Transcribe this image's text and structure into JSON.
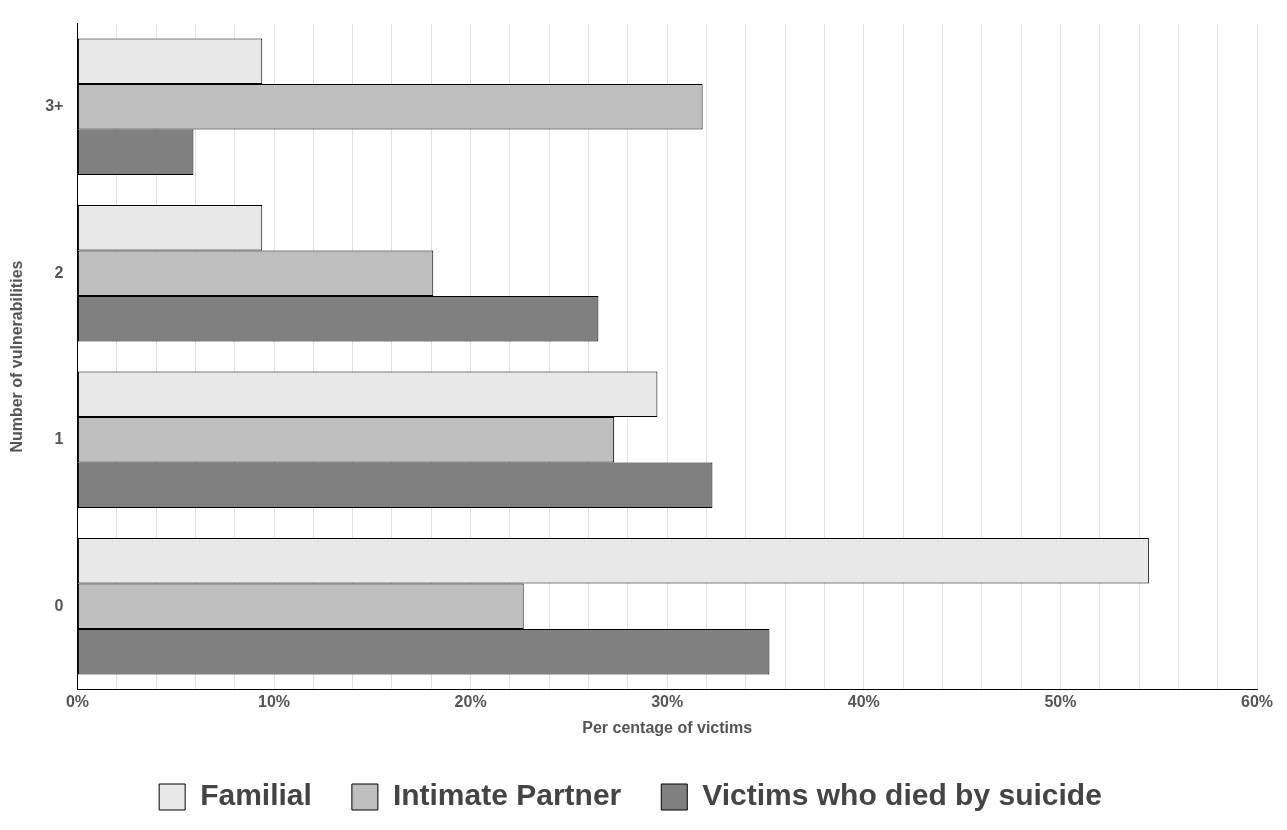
{
  "chart_data": {
    "type": "bar",
    "orientation": "horizontal",
    "xlabel": "Per centage of victims",
    "ylabel": "Number of vulnerabilities",
    "categories": [
      "3+",
      "2",
      "1",
      "0"
    ],
    "series": [
      {
        "name": "Familial",
        "color": "#e8e8e8",
        "values": [
          9.4,
          9.4,
          29.5,
          54.5
        ]
      },
      {
        "name": "Intimate Partner",
        "color": "#bfbfbf",
        "values": [
          31.8,
          18.1,
          27.3,
          22.7
        ]
      },
      {
        "name": "Victims who died by suicide",
        "color": "#808080",
        "values": [
          5.9,
          26.5,
          32.3,
          35.2
        ]
      }
    ],
    "xlim": [
      0,
      60
    ],
    "xticks": [
      {
        "value": 0,
        "label": "0%"
      },
      {
        "value": 2,
        "label": null
      },
      {
        "value": 4,
        "label": null
      },
      {
        "value": 6,
        "label": null
      },
      {
        "value": 8,
        "label": null
      },
      {
        "value": 10,
        "label": "10%"
      },
      {
        "value": 12,
        "label": null
      },
      {
        "value": 14,
        "label": null
      },
      {
        "value": 16,
        "label": null
      },
      {
        "value": 18,
        "label": null
      },
      {
        "value": 20,
        "label": "20%"
      },
      {
        "value": 22,
        "label": null
      },
      {
        "value": 24,
        "label": null
      },
      {
        "value": 26,
        "label": null
      },
      {
        "value": 28,
        "label": null
      },
      {
        "value": 30,
        "label": "30%"
      },
      {
        "value": 32,
        "label": null
      },
      {
        "value": 34,
        "label": null
      },
      {
        "value": 36,
        "label": null
      },
      {
        "value": 38,
        "label": null
      },
      {
        "value": 40,
        "label": "40%"
      },
      {
        "value": 42,
        "label": null
      },
      {
        "value": 44,
        "label": null
      },
      {
        "value": 46,
        "label": null
      },
      {
        "value": 48,
        "label": null
      },
      {
        "value": 50,
        "label": "50%"
      },
      {
        "value": 52,
        "label": null
      },
      {
        "value": 54,
        "label": null
      },
      {
        "value": 56,
        "label": null
      },
      {
        "value": 58,
        "label": null
      },
      {
        "value": 60,
        "label": "60%"
      }
    ],
    "grid": "x",
    "legend": "bottom"
  }
}
